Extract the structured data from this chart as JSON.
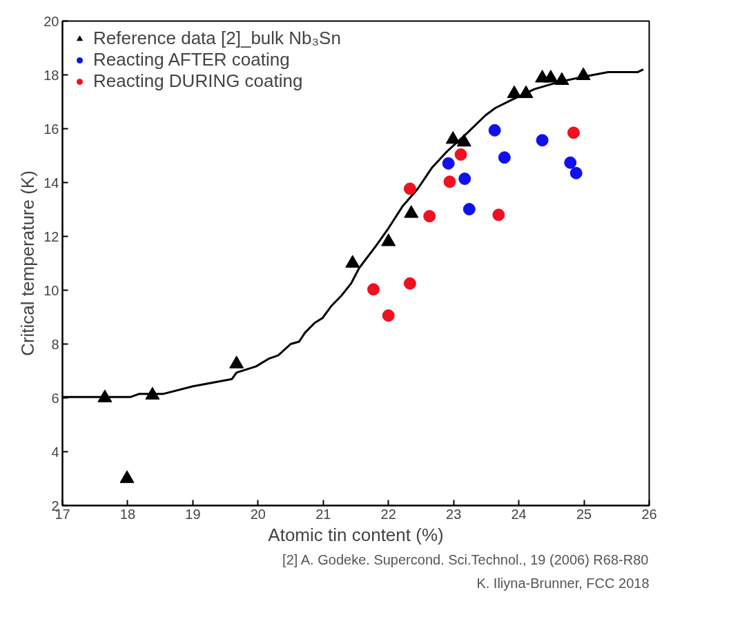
{
  "chart_data": {
    "type": "scatter",
    "xlabel": "Atomic tin content (%)",
    "ylabel": "Critical temperature (K)",
    "xlim": [
      17,
      26
    ],
    "xticks": [
      17,
      18,
      19,
      20,
      21,
      22,
      23,
      24,
      25,
      26
    ],
    "ylim": [
      2,
      20
    ],
    "yticks": [
      2,
      4,
      6,
      8,
      10,
      12,
      14,
      16,
      18,
      20
    ],
    "grid": false,
    "legend": "top left",
    "series": [
      {
        "type": "line",
        "color": "#000000",
        "marker": "none",
        "line_style": "solid",
        "x": [
          17,
          18.04,
          18.18,
          18.55,
          19.0,
          19.6,
          19.67,
          19.97,
          20.16,
          20.31,
          20.5,
          20.63,
          20.72,
          20.87,
          20.99,
          21.13,
          21.28,
          21.43,
          21.55,
          21.81,
          22.0,
          22.22,
          22.45,
          22.67,
          22.9,
          23.19,
          23.49,
          23.64,
          23.87,
          24.24,
          24.62,
          24.99,
          25.37,
          25.82,
          25.91
        ],
        "values": [
          6.03,
          6.03,
          6.15,
          6.15,
          6.43,
          6.7,
          6.94,
          7.17,
          7.45,
          7.58,
          8.0,
          8.09,
          8.42,
          8.79,
          8.97,
          9.43,
          9.8,
          10.26,
          10.82,
          11.65,
          12.3,
          13.13,
          13.77,
          14.56,
          15.16,
          15.8,
          16.5,
          16.77,
          17.05,
          17.47,
          17.74,
          17.93,
          18.1,
          18.1,
          18.2
        ]
      },
      {
        "name": "Reference data [2]_bulk Nb₃Sn",
        "color": "#000000",
        "marker": "triangle",
        "x": [
          17.65,
          17.99,
          18.38,
          19.67,
          21.45,
          22.0,
          22.35,
          22.99,
          23.16,
          23.93,
          24.11,
          24.36,
          24.49,
          24.66,
          24.99
        ],
        "values": [
          6.0,
          3.0,
          6.1,
          7.26,
          11.0,
          11.8,
          12.85,
          15.6,
          15.5,
          17.3,
          17.3,
          17.88,
          17.88,
          17.79,
          17.97
        ]
      },
      {
        "name": "Reacting AFTER coating",
        "color": "#1010f0",
        "marker": "circle",
        "x": [
          22.92,
          23.17,
          23.24,
          23.63,
          23.78,
          24.36,
          24.79,
          24.88
        ],
        "values": [
          14.71,
          14.14,
          13.01,
          15.94,
          14.93,
          15.57,
          14.74,
          14.35
        ]
      },
      {
        "name": "Reacting DURING coating",
        "color": "#f01020",
        "marker": "circle",
        "x": [
          22.33,
          23.11,
          22.94,
          22.63,
          23.69,
          24.84,
          21.77,
          22.33,
          22.0
        ],
        "values": [
          13.77,
          15.04,
          14.03,
          12.75,
          12.8,
          15.85,
          10.03,
          10.25,
          9.06
        ]
      }
    ],
    "annotations": [
      "[2] A. Godeke. Supercond. Sci.Technol., 19 (2006) R68-R80",
      "K. Iliyna-Brunner, FCC 2018"
    ]
  }
}
